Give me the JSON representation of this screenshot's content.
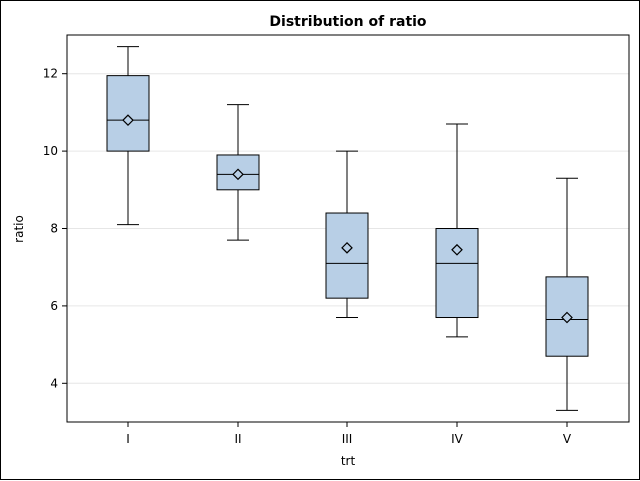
{
  "chart_data": {
    "type": "box",
    "title": "Distribution of ratio",
    "xlabel": "trt",
    "ylabel": "ratio",
    "ylim": [
      3.0,
      13.0
    ],
    "yticks": [
      4,
      6,
      8,
      10,
      12
    ],
    "grid": true,
    "categories": [
      "I",
      "II",
      "III",
      "IV",
      "V"
    ],
    "boxes": [
      {
        "category": "I",
        "min": 8.1,
        "q1": 10.0,
        "median": 10.8,
        "q3": 11.95,
        "max": 12.7,
        "mean": 10.8
      },
      {
        "category": "II",
        "min": 7.7,
        "q1": 9.0,
        "median": 9.4,
        "q3": 9.9,
        "max": 11.2,
        "mean": 9.4
      },
      {
        "category": "III",
        "min": 5.7,
        "q1": 6.2,
        "median": 7.1,
        "q3": 8.4,
        "max": 10.0,
        "mean": 7.5
      },
      {
        "category": "IV",
        "min": 5.2,
        "q1": 5.7,
        "median": 7.1,
        "q3": 8.0,
        "max": 10.7,
        "mean": 7.45
      },
      {
        "category": "V",
        "min": 3.3,
        "q1": 4.7,
        "median": 5.65,
        "q3": 6.75,
        "max": 9.3,
        "mean": 5.7
      }
    ],
    "colors": {
      "box_fill": "#b8cfe6",
      "box_stroke": "#000000",
      "grid": "#e6e6e6",
      "axis": "#000000"
    }
  }
}
